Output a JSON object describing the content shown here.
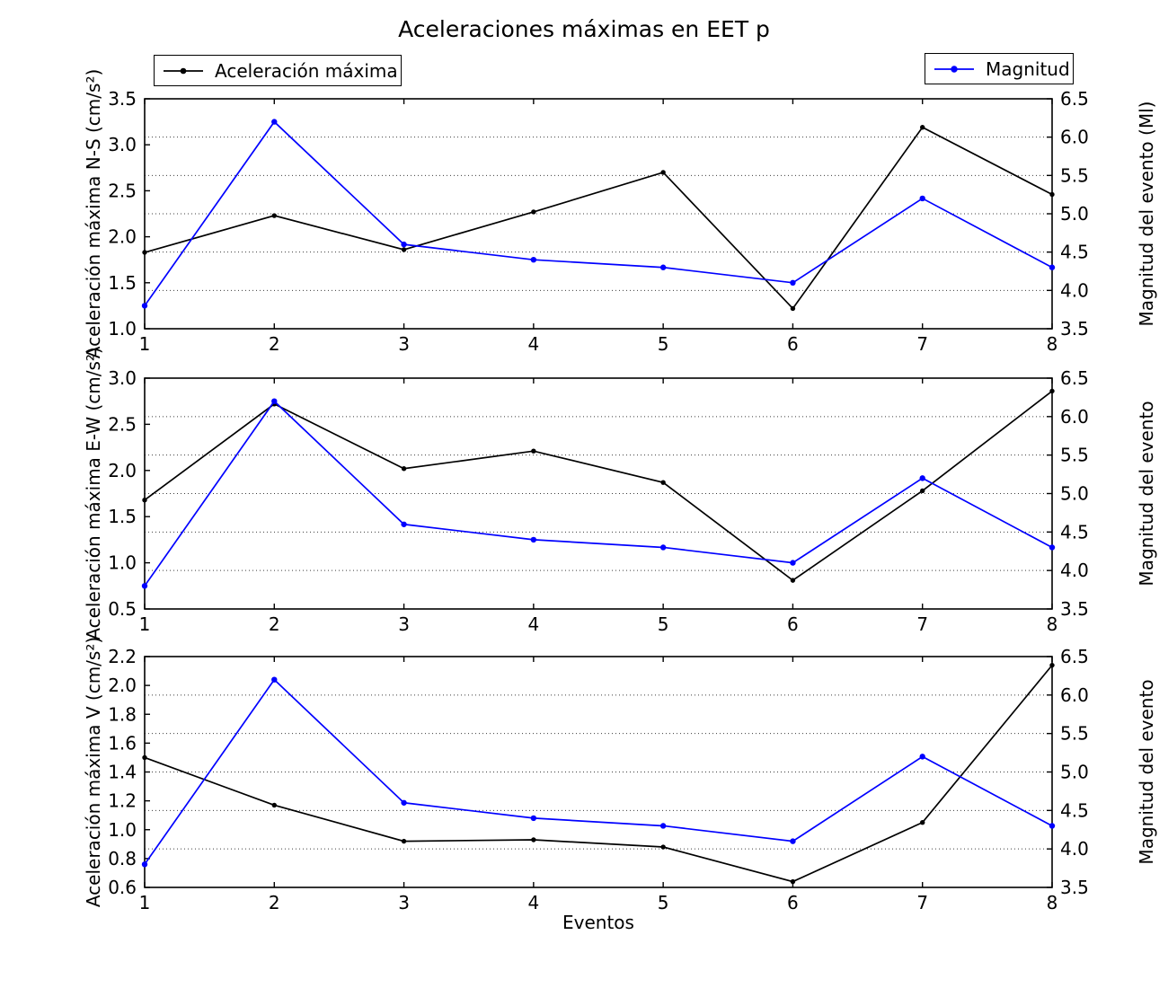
{
  "title": "Aceleraciones máximas en EET p",
  "xlabel": "Eventos",
  "legend_left": {
    "label": "Aceleración máxima",
    "color": "#000000"
  },
  "legend_right": {
    "label": "Magnitud",
    "color": "#0000ff"
  },
  "colors": {
    "aceleracion": "#000000",
    "magnitud": "#0000ff",
    "grid": "#3c3c3c"
  },
  "chart_data": [
    {
      "type": "line",
      "name": "ns",
      "x": [
        1,
        2,
        3,
        4,
        5,
        6,
        7,
        8
      ],
      "xticklabels": [
        "1",
        "2",
        "3",
        "4",
        "5",
        "6",
        "7",
        "8"
      ],
      "ylabel_left": "Aceleración máxima N-S (cm/s²)",
      "ylabel_right": "Magnitud del evento (Ml)",
      "ylim_left": [
        1.0,
        3.5
      ],
      "yticks_left": [
        "1.0",
        "1.5",
        "2.0",
        "2.5",
        "3.0",
        "3.5"
      ],
      "ylim_right": [
        3.5,
        6.5
      ],
      "yticks_right": [
        "3.5",
        "4.0",
        "4.5",
        "5.0",
        "5.5",
        "6.0",
        "6.5"
      ],
      "gridlines_right": [
        4.0,
        4.5,
        5.0,
        5.5,
        6.0
      ],
      "grid": "dotted-horizontal",
      "legend_position": "above-axes",
      "series": [
        {
          "name": "Aceleración máxima",
          "axis": "left",
          "color": "#000000",
          "values": [
            1.83,
            2.23,
            1.86,
            2.27,
            2.7,
            1.22,
            3.19,
            2.46
          ]
        },
        {
          "name": "Magnitud",
          "axis": "right",
          "color": "#0000ff",
          "values": [
            3.8,
            6.2,
            4.6,
            4.4,
            4.3,
            4.1,
            5.2,
            4.3
          ]
        }
      ]
    },
    {
      "type": "line",
      "name": "ew",
      "x": [
        1,
        2,
        3,
        4,
        5,
        6,
        7,
        8
      ],
      "xticklabels": [
        "1",
        "2",
        "3",
        "4",
        "5",
        "6",
        "7",
        "8"
      ],
      "ylabel_left": "Aceleración máxima E-W (cm/s²)",
      "ylabel_right": "Magnitud del evento",
      "ylim_left": [
        0.5,
        3.0
      ],
      "yticks_left": [
        "0.5",
        "1.0",
        "1.5",
        "2.0",
        "2.5",
        "3.0"
      ],
      "ylim_right": [
        3.5,
        6.5
      ],
      "yticks_right": [
        "3.5",
        "4.0",
        "4.5",
        "5.0",
        "5.5",
        "6.0",
        "6.5"
      ],
      "gridlines_right": [
        4.0,
        4.5,
        5.0,
        5.5,
        6.0
      ],
      "grid": "dotted-horizontal",
      "series": [
        {
          "name": "Aceleración máxima",
          "axis": "left",
          "color": "#000000",
          "values": [
            1.68,
            2.72,
            2.02,
            2.21,
            1.87,
            0.81,
            1.78,
            2.86
          ]
        },
        {
          "name": "Magnitud",
          "axis": "right",
          "color": "#0000ff",
          "values": [
            3.8,
            6.2,
            4.6,
            4.4,
            4.3,
            4.1,
            5.2,
            4.3
          ]
        }
      ]
    },
    {
      "type": "line",
      "name": "v",
      "x": [
        1,
        2,
        3,
        4,
        5,
        6,
        7,
        8
      ],
      "xticklabels": [
        "1",
        "2",
        "3",
        "4",
        "5",
        "6",
        "7",
        "8"
      ],
      "ylabel_left": "Aceleración máxima V (cm/s²)",
      "ylabel_right": "Magnitud del evento",
      "ylim_left": [
        0.6,
        2.2
      ],
      "yticks_left": [
        "0.6",
        "0.8",
        "1.0",
        "1.2",
        "1.4",
        "1.6",
        "1.8",
        "2.0",
        "2.2"
      ],
      "ylim_right": [
        3.5,
        6.5
      ],
      "yticks_right": [
        "3.5",
        "4.0",
        "4.5",
        "5.0",
        "5.5",
        "6.0",
        "6.5"
      ],
      "gridlines_right": [
        4.0,
        4.5,
        5.0,
        5.5,
        6.0
      ],
      "grid": "dotted-horizontal",
      "series": [
        {
          "name": "Aceleración máxima",
          "axis": "left",
          "color": "#000000",
          "values": [
            1.5,
            1.17,
            0.92,
            0.93,
            0.88,
            0.64,
            1.05,
            2.14
          ]
        },
        {
          "name": "Magnitud",
          "axis": "right",
          "color": "#0000ff",
          "values": [
            3.8,
            6.2,
            4.6,
            4.4,
            4.3,
            4.1,
            5.2,
            4.3
          ]
        }
      ]
    }
  ]
}
